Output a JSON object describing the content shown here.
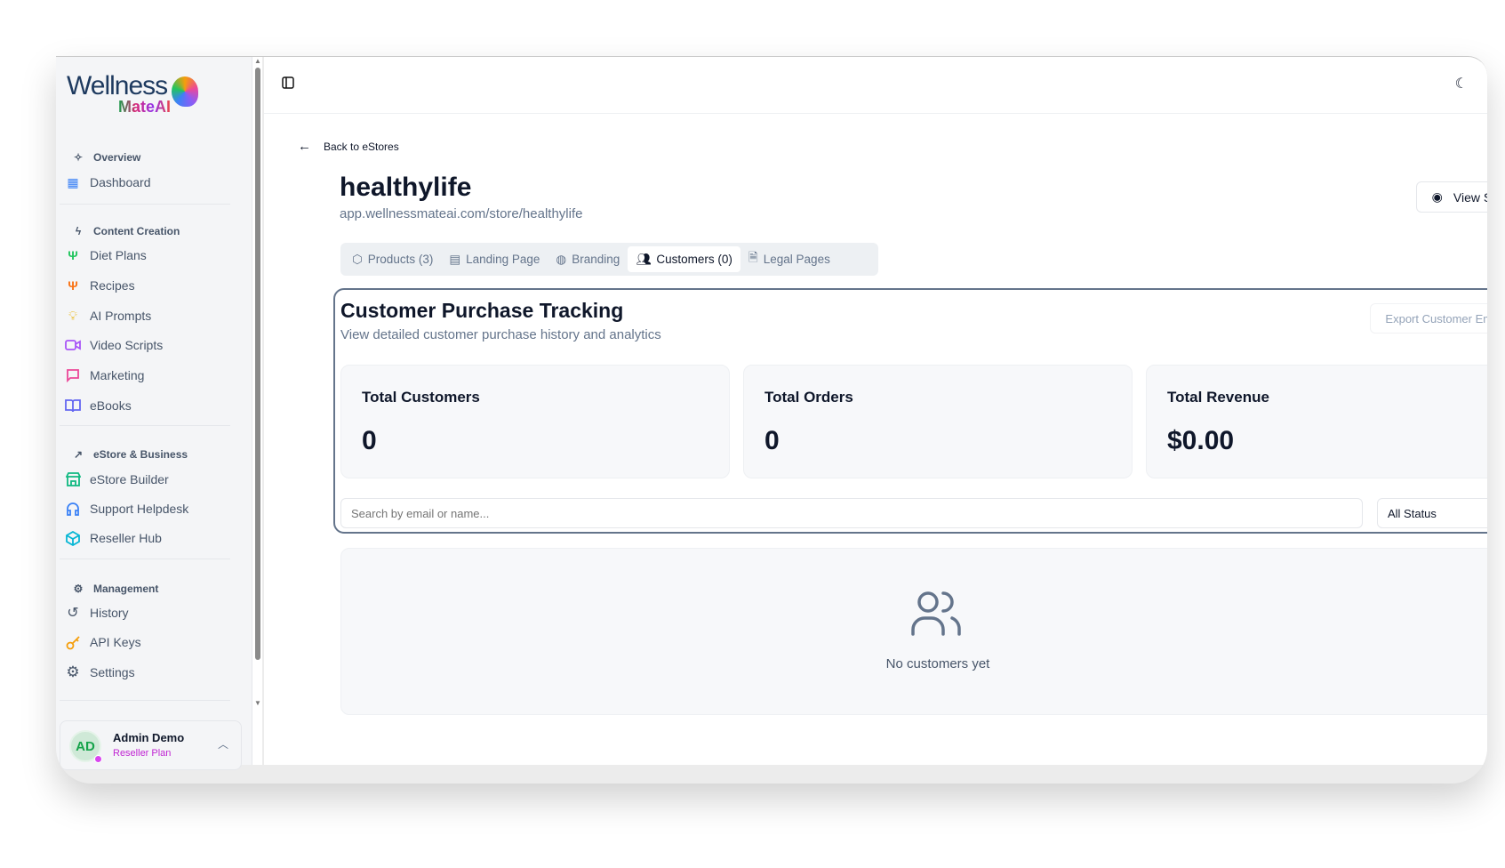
{
  "brand": {
    "name_line1": "Wellness",
    "name_line2": "MateAI"
  },
  "sidebar": {
    "sections": [
      {
        "label": "Overview",
        "icon": "sparkles-icon",
        "items": [
          {
            "label": "Dashboard",
            "icon": "grid-icon",
            "color": "#3b82f6"
          }
        ]
      },
      {
        "label": "Content Creation",
        "icon": "zap-icon",
        "items": [
          {
            "label": "Diet Plans",
            "icon": "utensils-icon",
            "color": "#22c55e"
          },
          {
            "label": "Recipes",
            "icon": "utensils-icon",
            "color": "#f97316"
          },
          {
            "label": "AI Prompts",
            "icon": "lightbulb-icon",
            "color": "#eab308"
          },
          {
            "label": "Video Scripts",
            "icon": "video-icon",
            "color": "#a855f7"
          },
          {
            "label": "Marketing",
            "icon": "message-square-icon",
            "color": "#ec4899"
          },
          {
            "label": "eBooks",
            "icon": "book-open-icon",
            "color": "#6366f1"
          }
        ]
      },
      {
        "label": "eStore & Business",
        "icon": "trending-up-icon",
        "items": [
          {
            "label": "eStore Builder",
            "icon": "store-icon",
            "color": "#10b981"
          },
          {
            "label": "Support Helpdesk",
            "icon": "headphones-icon",
            "color": "#3b82f6"
          },
          {
            "label": "Reseller Hub",
            "icon": "package-icon",
            "color": "#06b6d4"
          }
        ]
      },
      {
        "label": "Management",
        "icon": "gear-icon",
        "items": [
          {
            "label": "History",
            "icon": "history-icon",
            "color": "#475569"
          },
          {
            "label": "API Keys",
            "icon": "key-icon",
            "color": "#f59e0b"
          },
          {
            "label": "Settings",
            "icon": "gear-icon",
            "color": "#475569"
          }
        ]
      }
    ],
    "user": {
      "initials": "AD",
      "name": "Admin Demo",
      "plan": "Reseller Plan"
    }
  },
  "page": {
    "back_label": "Back to eStores",
    "title": "healthylife",
    "url": "app.wellnessmateai.com/store/healthylife",
    "view_store": "View Store",
    "tabs": [
      {
        "label": "Products (3)"
      },
      {
        "label": "Landing Page"
      },
      {
        "label": "Branding"
      },
      {
        "label": "Customers (0)",
        "active": true
      },
      {
        "label": "Legal Pages"
      }
    ]
  },
  "tracking": {
    "title": "Customer Purchase Tracking",
    "subtitle": "View detailed customer purchase history and analytics",
    "export_label": "Export Customer Emails",
    "stats": [
      {
        "label": "Total Customers",
        "value": "0"
      },
      {
        "label": "Total Orders",
        "value": "0"
      },
      {
        "label": "Total Revenue",
        "value": "$0.00"
      }
    ],
    "search_placeholder": "Search by email or name...",
    "status_filter": "All Status",
    "empty_text": "No customers yet"
  }
}
